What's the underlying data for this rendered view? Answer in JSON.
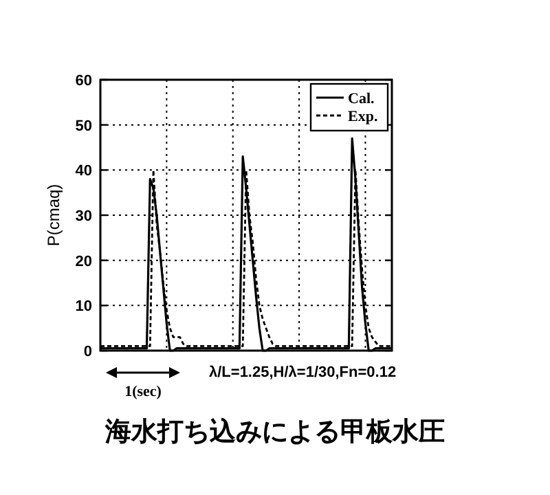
{
  "chart_data": {
    "type": "line",
    "title": "海水打ち込みによる甲板水圧",
    "ylabel": "P(cmaq)",
    "annotations": [
      "1(sec)",
      "λ/L=1.25,H/λ=1/30,Fn=0.12"
    ],
    "categories": [
      null,
      null,
      null,
      null,
      null,
      null,
      null,
      null,
      null,
      null,
      null,
      null,
      null,
      null,
      null,
      null,
      null,
      null,
      null,
      null,
      null,
      null,
      null,
      null,
      null,
      null,
      null,
      null,
      null,
      null,
      null,
      null,
      null,
      null,
      null,
      null,
      null,
      null,
      null,
      null,
      null,
      null,
      null,
      null,
      null,
      null,
      null,
      null,
      null,
      null,
      null,
      null,
      null,
      null,
      null,
      null,
      null,
      null,
      null,
      null,
      null,
      null,
      null,
      null,
      null,
      null,
      null,
      null,
      null,
      null,
      null,
      null,
      null,
      null,
      null,
      null,
      null,
      null,
      null,
      null,
      null,
      null,
      null,
      null,
      null,
      null,
      null,
      null,
      null
    ],
    "series": [
      {
        "name": "Cal.",
        "color": "#000000",
        "line_style": "solid",
        "values": [
          0.5,
          0.5,
          0.5,
          0.5,
          0.5,
          0.5,
          0.5,
          0.5,
          0.5,
          0.5,
          0.5,
          0.5,
          0.5,
          0.5,
          0.5,
          38,
          36,
          30,
          22,
          14,
          6,
          0,
          0,
          0.5,
          0.5,
          0.5,
          0.5,
          0.5,
          0.5,
          0.5,
          0.5,
          0.5,
          0.5,
          0.5,
          0.5,
          0.5,
          0.5,
          0.5,
          0.5,
          0.5,
          0.5,
          0.5,
          0.5,
          43,
          36,
          28,
          20,
          12,
          5,
          0,
          0,
          0.5,
          0.5,
          0.5,
          0.5,
          0.5,
          0.5,
          0.5,
          0.5,
          0.5,
          0.5,
          0.5,
          0.5,
          0.5,
          0.5,
          0.5,
          0.5,
          0.5,
          0.5,
          0.5,
          0.5,
          0.5,
          0.5,
          0.5,
          0.5,
          0.5,
          47,
          38,
          26,
          14,
          6,
          0,
          0,
          0.5,
          0.5,
          0.5,
          0.5,
          0.5,
          0.5
        ]
      },
      {
        "name": "Exp.",
        "color": "#000000",
        "line_style": "dashed",
        "values": [
          1,
          1,
          1,
          1,
          1,
          1,
          1,
          1,
          1,
          1,
          1,
          1,
          1,
          1,
          1,
          1,
          40,
          28,
          22,
          15,
          9,
          5,
          3,
          3,
          3,
          1.5,
          1,
          1,
          1,
          1,
          1,
          1,
          1,
          1,
          1,
          1,
          1,
          1,
          1,
          1,
          1,
          1,
          1,
          1,
          40,
          30,
          24,
          16,
          10,
          7,
          5,
          3,
          1.5,
          1,
          1,
          1,
          1,
          1,
          1,
          1,
          1,
          1,
          1,
          1,
          1,
          1,
          1,
          1,
          1,
          1,
          1,
          1,
          1,
          1,
          1,
          1,
          1,
          40,
          28,
          18,
          10,
          5,
          3,
          2,
          1,
          1,
          1,
          1,
          1
        ]
      }
    ],
    "ylim": [
      0,
      60
    ],
    "yticks": [
      0,
      10,
      20,
      30,
      40,
      50,
      60
    ],
    "grid": true,
    "legend": "top right",
    "tick_labels": "y"
  }
}
